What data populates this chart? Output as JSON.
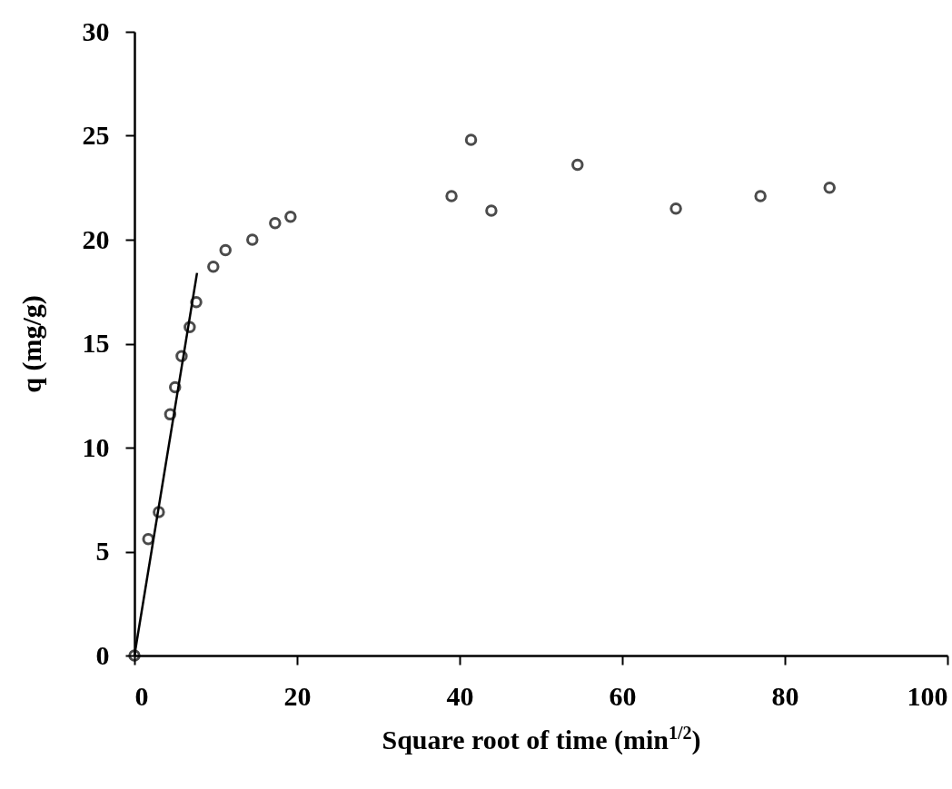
{
  "chart_data": {
    "type": "scatter",
    "xlabel": "Square root of time (min$^{1/2}$)",
    "ylabel": "q (mg/g)",
    "xlim": [
      0,
      100
    ],
    "xticks": [
      0,
      20,
      40,
      60,
      80,
      100
    ],
    "ylim": [
      0,
      30
    ],
    "yticks": [
      0,
      5,
      10,
      15,
      20,
      25,
      30
    ],
    "grid": false,
    "series": [
      {
        "marker": "circle",
        "color": "#000000",
        "x": [
          0,
          1.7,
          3.0,
          4.4,
          5.0,
          5.8,
          6.8,
          7.6,
          9.7,
          11.2,
          14.5,
          17.3,
          19.2,
          39,
          41.4,
          43.9,
          54.5,
          66.6,
          77,
          85.5
        ],
        "values": [
          0,
          5.6,
          6.9,
          11.6,
          12.9,
          14.4,
          15.8,
          17.0,
          18.7,
          19.5,
          20.0,
          20.8,
          21.1,
          22.1,
          24.8,
          21.4,
          23.6,
          21.5,
          22.1,
          22.5
        ]
      },
      {
        "type": "line",
        "marker": "none",
        "color": "#000000",
        "line_style": "solid",
        "x": [
          0,
          7.7
        ],
        "values": [
          0,
          18.4
        ]
      }
    ]
  }
}
